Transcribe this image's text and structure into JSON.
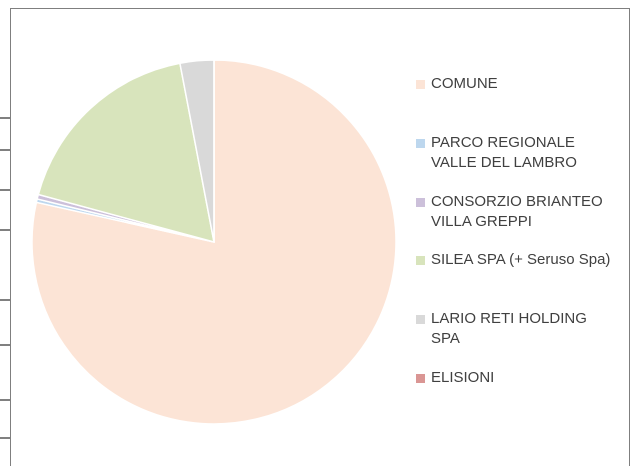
{
  "chart_data": {
    "type": "pie",
    "categories": [
      "COMUNE",
      "PARCO REGIONALE VALLE DEL LAMBRO",
      "CONSORZIO BRIANTEO VILLA GREPPI",
      "SILEA SPA (+ Seruso Spa)",
      "LARIO RETI HOLDING SPA",
      "ELISIONI"
    ],
    "values": [
      78.5,
      0.3,
      0.4,
      17.8,
      3.0,
      0
    ],
    "colors": [
      "#fce4d6",
      "#bdd7ee",
      "#ccc0da",
      "#d8e4bc",
      "#d9d9d9",
      "#da9694"
    ]
  }
}
